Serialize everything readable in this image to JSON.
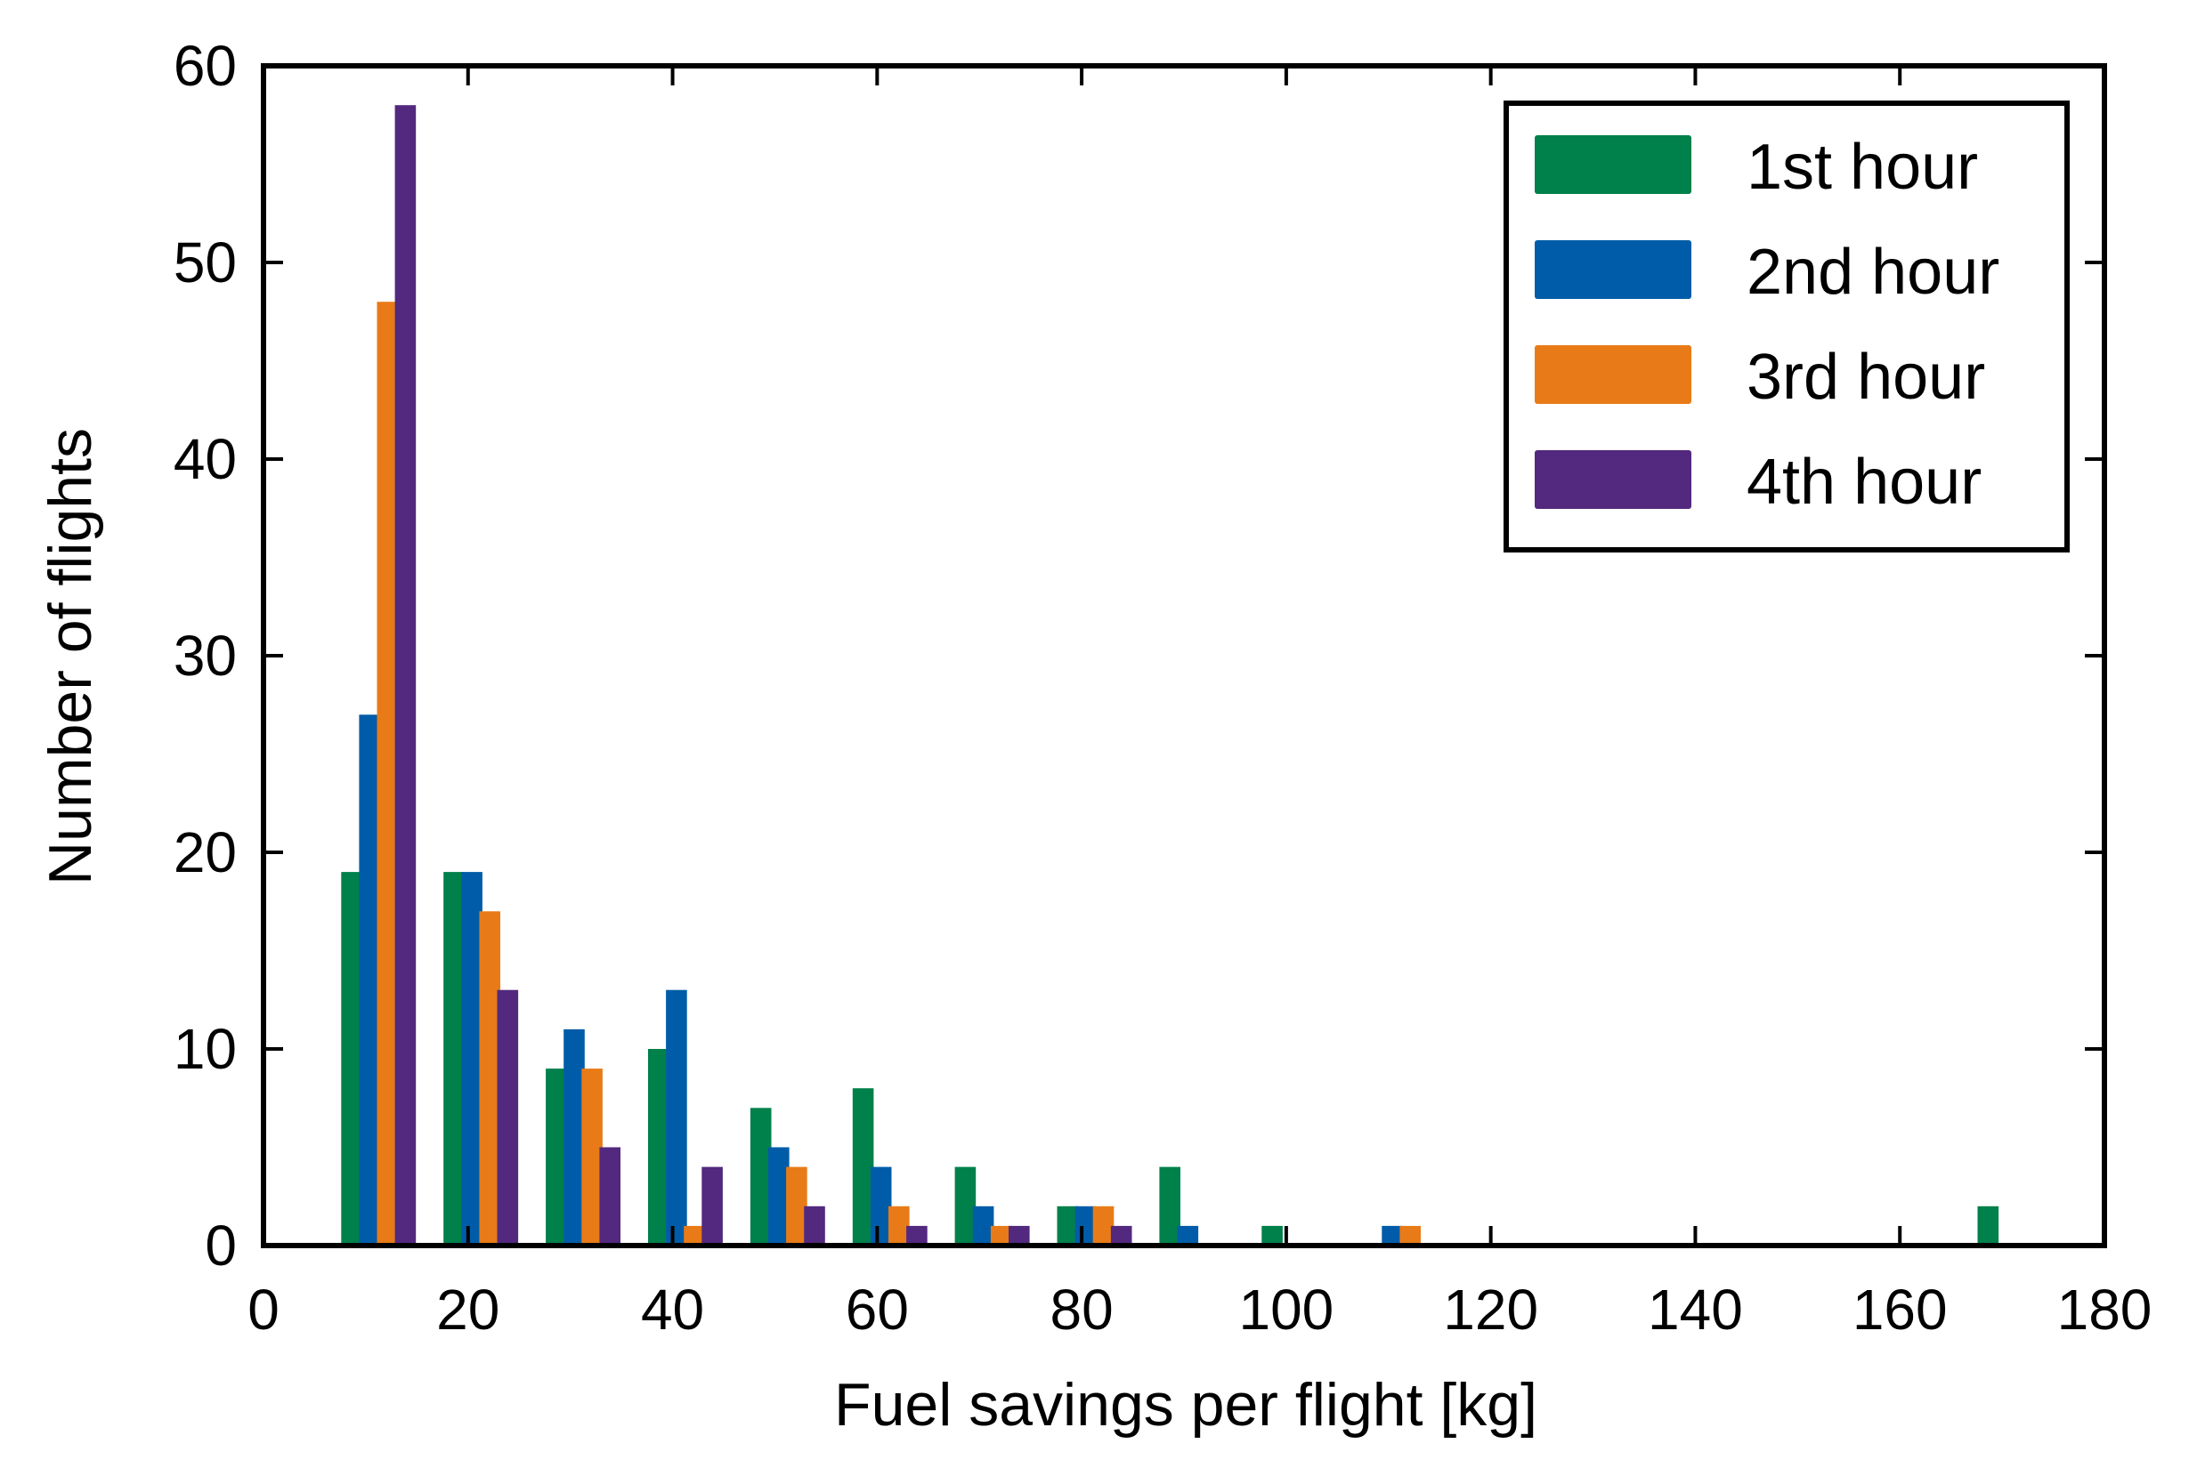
{
  "chart_data": {
    "type": "bar",
    "title": "",
    "xlabel": "Fuel savings per flight [kg]",
    "ylabel": "Number of flights",
    "xlim": [
      0,
      180
    ],
    "ylim": [
      0,
      60
    ],
    "xticks": [
      0,
      20,
      40,
      60,
      80,
      100,
      120,
      140,
      160,
      180
    ],
    "yticks": [
      0,
      10,
      20,
      30,
      40,
      50,
      60
    ],
    "xtick_labels": [
      "0",
      "20",
      "40",
      "60",
      "80",
      "100",
      "120",
      "140",
      "160",
      "180"
    ],
    "ytick_labels": [
      "0",
      "10",
      "20",
      "30",
      "40",
      "50",
      "60"
    ],
    "grid": false,
    "legend_position": "top-right",
    "bin_centers": [
      10,
      20,
      30,
      40,
      50,
      60,
      70,
      80,
      90,
      100,
      110,
      120,
      130,
      140,
      150,
      160,
      170
    ],
    "series": [
      {
        "name": "1st hour",
        "color": "#00804a",
        "values": [
          19,
          19,
          9,
          10,
          7,
          8,
          4,
          2,
          4,
          1,
          0,
          0,
          0,
          0,
          0,
          0,
          2
        ]
      },
      {
        "name": "2nd hour",
        "color": "#005ca8",
        "values": [
          27,
          19,
          11,
          13,
          5,
          4,
          2,
          2,
          1,
          0,
          1,
          0,
          0,
          0,
          0,
          0,
          0
        ]
      },
      {
        "name": "3rd hour",
        "color": "#e87b17",
        "values": [
          48,
          17,
          9,
          1,
          4,
          2,
          1,
          2,
          0,
          0,
          1,
          0,
          0,
          0,
          0,
          0,
          0
        ]
      },
      {
        "name": "4th hour",
        "color": "#52297e",
        "values": [
          58,
          13,
          5,
          4,
          2,
          1,
          1,
          1,
          0,
          0,
          0,
          0,
          0,
          0,
          0,
          0,
          0
        ]
      }
    ]
  }
}
